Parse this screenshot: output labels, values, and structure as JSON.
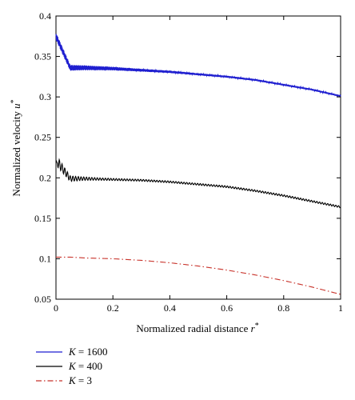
{
  "chart_data": {
    "type": "line",
    "xlabel": "Normalized radial distance r*",
    "ylabel": "Normalized velocity u*",
    "xlim": [
      0,
      1
    ],
    "ylim": [
      0.05,
      0.4
    ],
    "xticks": [
      0,
      0.2,
      0.4,
      0.6,
      0.8,
      1
    ],
    "xtick_labels": [
      "0",
      "0.2",
      "0.4",
      "0.6",
      "0.8",
      "1"
    ],
    "yticks": [
      0.05,
      0.1,
      0.15,
      0.2,
      0.25,
      0.3,
      0.35,
      0.4
    ],
    "ytick_labels": [
      "0.05",
      "0.1",
      "0.15",
      "0.2",
      "0.25",
      "0.3",
      "0.35",
      "0.4"
    ],
    "grid": false,
    "legend_position": "bottom-left, below plot",
    "series": [
      {
        "name": "K = 1600",
        "label_var": "K",
        "label_val": "= 1600",
        "color": "#1f1fd0",
        "style": "solid",
        "oscillation": "dense",
        "x": [
          0,
          0.05,
          0.1,
          0.2,
          0.3,
          0.4,
          0.5,
          0.6,
          0.7,
          0.8,
          0.9,
          1.0
        ],
        "y": [
          0.375,
          0.336,
          0.336,
          0.335,
          0.333,
          0.331,
          0.328,
          0.325,
          0.321,
          0.315,
          0.309,
          0.301
        ]
      },
      {
        "name": "K = 400",
        "label_var": "K",
        "label_val": "= 400",
        "color": "#000000",
        "style": "solid",
        "oscillation": "wavy",
        "x": [
          0,
          0.05,
          0.1,
          0.2,
          0.3,
          0.4,
          0.5,
          0.6,
          0.7,
          0.8,
          0.9,
          1.0
        ],
        "y": [
          0.222,
          0.199,
          0.199,
          0.198,
          0.197,
          0.195,
          0.192,
          0.189,
          0.184,
          0.178,
          0.171,
          0.164
        ]
      },
      {
        "name": "K = 3",
        "label_var": "K",
        "label_val": "= 3",
        "color": "#c8322a",
        "style": "dash-dot",
        "oscillation": "none",
        "x": [
          0,
          0.05,
          0.1,
          0.2,
          0.3,
          0.4,
          0.5,
          0.6,
          0.7,
          0.8,
          0.9,
          1.0
        ],
        "y": [
          0.102,
          0.102,
          0.101,
          0.1,
          0.098,
          0.095,
          0.091,
          0.086,
          0.08,
          0.073,
          0.065,
          0.056
        ]
      }
    ]
  }
}
